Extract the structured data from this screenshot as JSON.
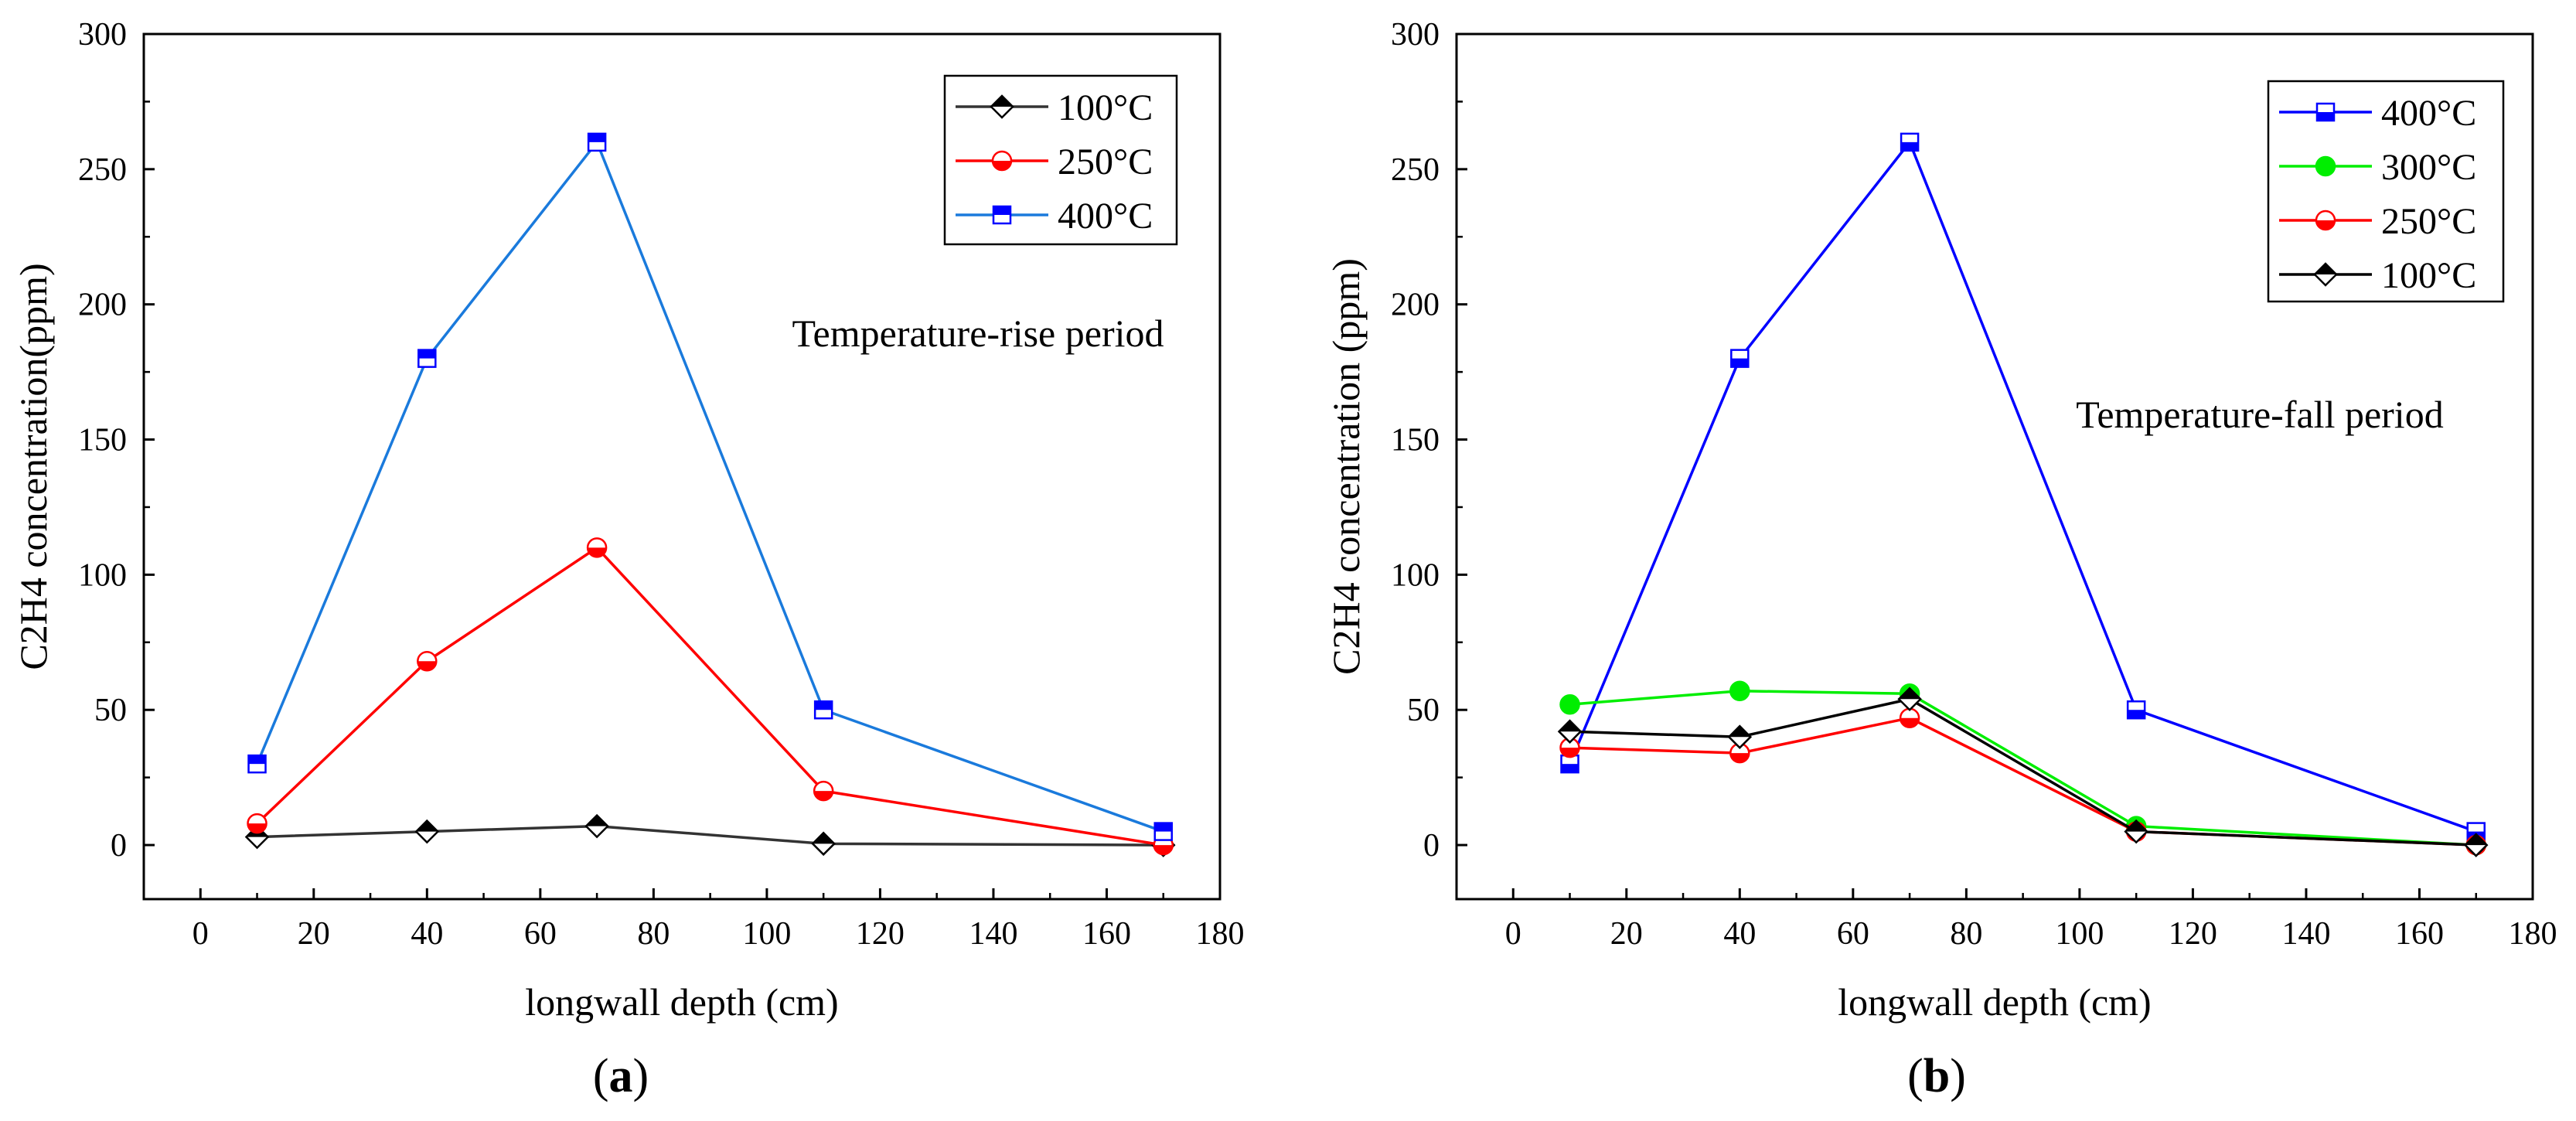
{
  "figure": {
    "panels": [
      {
        "label_open": "(",
        "label": "a",
        "label_close": ")"
      },
      {
        "label_open": "(",
        "label": "b",
        "label_close": ")"
      }
    ]
  },
  "chart_data": [
    {
      "type": "line",
      "panel": "a",
      "title": "",
      "annotation": "Temperature-rise period",
      "xlabel": "longwall depth (cm)",
      "ylabel": "C2H4 concentration(ppm)",
      "xlim": [
        -10,
        180
      ],
      "ylim": [
        -20,
        300
      ],
      "xticks": [
        0,
        20,
        40,
        60,
        80,
        100,
        120,
        140,
        160,
        180
      ],
      "yticks": [
        0,
        50,
        100,
        150,
        200,
        250,
        300
      ],
      "legend_position": "top-right",
      "series": [
        {
          "name": "100°C",
          "color": "#000000",
          "line_color": "#333333",
          "marker": "diamond",
          "fill": "top-half",
          "x": [
            10,
            40,
            70,
            110,
            170
          ],
          "values": [
            3,
            5,
            7,
            0.5,
            0
          ]
        },
        {
          "name": "250°C",
          "color": "#ff0000",
          "line_color": "#ff0000",
          "marker": "circle",
          "fill": "bottom-half",
          "x": [
            10,
            40,
            70,
            110,
            170
          ],
          "values": [
            8,
            68,
            110,
            20,
            0
          ]
        },
        {
          "name": "400°C",
          "color": "#0000ff",
          "line_color": "#1a7adc",
          "marker": "square",
          "fill": "top-half",
          "x": [
            10,
            40,
            70,
            110,
            170
          ],
          "values": [
            30,
            180,
            260,
            50,
            5
          ]
        }
      ]
    },
    {
      "type": "line",
      "panel": "b",
      "title": "",
      "annotation": "Temperature-fall period",
      "xlabel": "longwall depth (cm)",
      "ylabel": "C2H4 concentration (ppm)",
      "xlim": [
        -10,
        180
      ],
      "ylim": [
        -20,
        300
      ],
      "xticks": [
        0,
        20,
        40,
        60,
        80,
        100,
        120,
        140,
        160,
        180
      ],
      "yticks": [
        0,
        50,
        100,
        150,
        200,
        250,
        300
      ],
      "legend_position": "top-right",
      "series": [
        {
          "name": "400°C",
          "color": "#0000ff",
          "line_color": "#0000ff",
          "marker": "square",
          "fill": "bottom-half",
          "x": [
            10,
            40,
            70,
            110,
            170
          ],
          "values": [
            30,
            180,
            260,
            50,
            5
          ]
        },
        {
          "name": "300°C",
          "color": "#00ee00",
          "line_color": "#00ee00",
          "marker": "circle",
          "fill": "full",
          "x": [
            10,
            40,
            70,
            110,
            170
          ],
          "values": [
            52,
            57,
            56,
            7,
            0
          ]
        },
        {
          "name": "250°C",
          "color": "#ff0000",
          "line_color": "#ff0000",
          "marker": "circle",
          "fill": "bottom-half",
          "x": [
            10,
            40,
            70,
            110,
            170
          ],
          "values": [
            36,
            34,
            47,
            5,
            0
          ]
        },
        {
          "name": "100°C",
          "color": "#000000",
          "line_color": "#000000",
          "marker": "diamond",
          "fill": "top-half",
          "x": [
            10,
            40,
            70,
            110,
            170
          ],
          "values": [
            42,
            40,
            54,
            5,
            0
          ]
        }
      ]
    }
  ]
}
